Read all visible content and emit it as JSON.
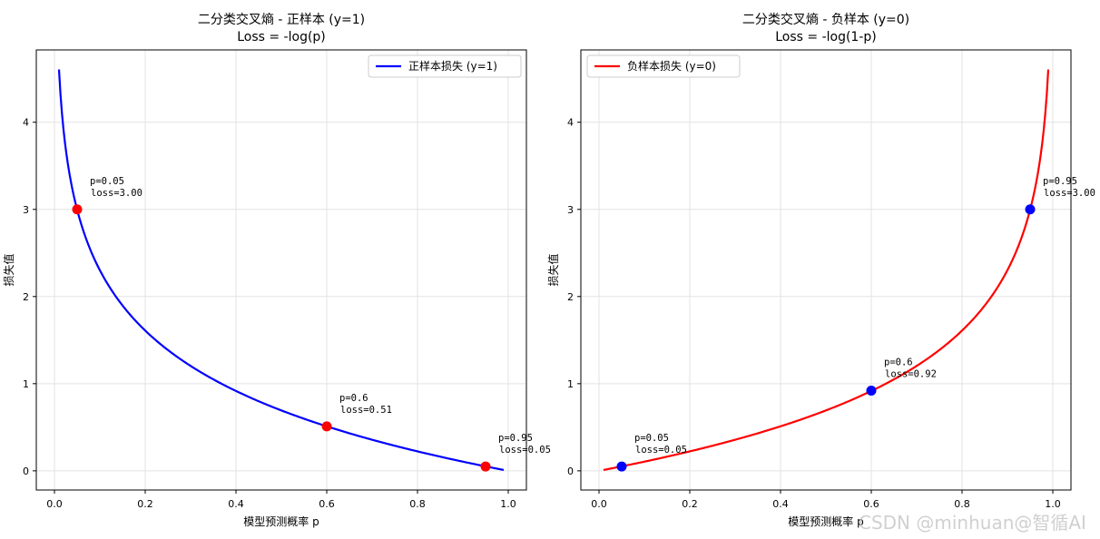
{
  "chart_data": [
    {
      "type": "line",
      "title": "二分类交叉熵 - 正样本 (y=1)",
      "subtitle": "Loss = -log(p)",
      "xlabel": "模型预测概率 p",
      "ylabel": "损失值",
      "xlim": [
        -0.04,
        1.04
      ],
      "ylim": [
        -0.22,
        4.83
      ],
      "xticks": [
        0.0,
        0.2,
        0.4,
        0.6,
        0.8,
        1.0
      ],
      "xtick_labels": [
        "0.0",
        "0.2",
        "0.4",
        "0.6",
        "0.8",
        "1.0"
      ],
      "yticks": [
        0,
        1,
        2,
        3,
        4
      ],
      "ytick_labels": [
        "0",
        "1",
        "2",
        "3",
        "4"
      ],
      "grid": true,
      "legend_position": "top-right",
      "series": [
        {
          "name": "正样本损失 (y=1)",
          "color": "#0000ff",
          "function": "-log(p)",
          "p_range": [
            0.01,
            0.99
          ]
        }
      ],
      "highlight_points": [
        {
          "p": 0.05,
          "loss": 3.0,
          "color": "#ff0000",
          "label_line1": "p=0.05",
          "label_line2": "loss=3.00"
        },
        {
          "p": 0.6,
          "loss": 0.51,
          "color": "#ff0000",
          "label_line1": "p=0.6",
          "label_line2": "loss=0.51"
        },
        {
          "p": 0.95,
          "loss": 0.05,
          "color": "#ff0000",
          "label_line1": "p=0.95",
          "label_line2": "loss=0.05"
        }
      ]
    },
    {
      "type": "line",
      "title": "二分类交叉熵 - 负样本 (y=0)",
      "subtitle": "Loss = -log(1-p)",
      "xlabel": "模型预测概率 p",
      "ylabel": "损失值",
      "xlim": [
        -0.04,
        1.04
      ],
      "ylim": [
        -0.22,
        4.83
      ],
      "xticks": [
        0.0,
        0.2,
        0.4,
        0.6,
        0.8,
        1.0
      ],
      "xtick_labels": [
        "0.0",
        "0.2",
        "0.4",
        "0.6",
        "0.8",
        "1.0"
      ],
      "yticks": [
        0,
        1,
        2,
        3,
        4
      ],
      "ytick_labels": [
        "0",
        "1",
        "2",
        "3",
        "4"
      ],
      "grid": true,
      "legend_position": "top-left",
      "series": [
        {
          "name": "负样本损失 (y=0)",
          "color": "#ff0000",
          "function": "-log(1-p)",
          "p_range": [
            0.01,
            0.99
          ]
        }
      ],
      "highlight_points": [
        {
          "p": 0.05,
          "loss": 0.05,
          "color": "#0000ff",
          "label_line1": "p=0.05",
          "label_line2": "loss=0.05"
        },
        {
          "p": 0.6,
          "loss": 0.92,
          "color": "#0000ff",
          "label_line1": "p=0.6",
          "label_line2": "loss=0.92"
        },
        {
          "p": 0.95,
          "loss": 3.0,
          "color": "#0000ff",
          "label_line1": "p=0.95",
          "label_line2": "loss=3.00"
        }
      ]
    }
  ],
  "watermark": "CSDN @minhuan@智循AI"
}
